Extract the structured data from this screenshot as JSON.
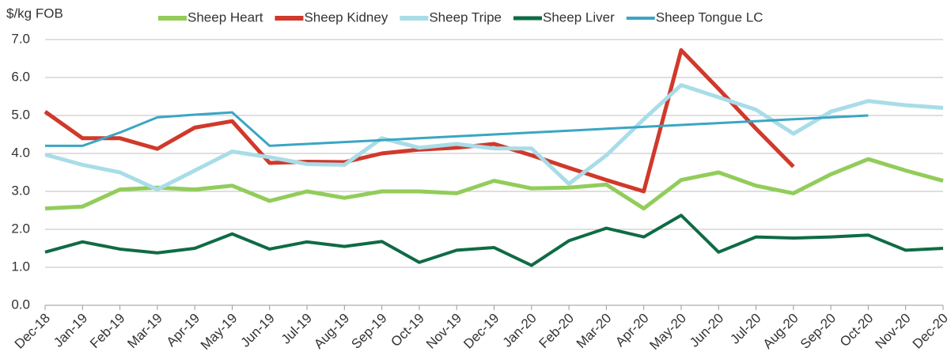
{
  "chart_data": {
    "type": "line",
    "y_axis_label": "$/kg FOB",
    "categories": [
      "Dec-18",
      "Jan-19",
      "Feb-19",
      "Mar-19",
      "Apr-19",
      "May-19",
      "Jun-19",
      "Jul-19",
      "Aug-19",
      "Sep-19",
      "Oct-19",
      "Nov-19",
      "Dec-19",
      "Jan-20",
      "Feb-20",
      "Mar-20",
      "Apr-20",
      "May-20",
      "Jun-20",
      "Jul-20",
      "Aug-20",
      "Sep-20",
      "Oct-20",
      "Nov-20",
      "Dec-20"
    ],
    "series": [
      {
        "name": "Sheep Heart",
        "color": "#92cc5a",
        "width": 5,
        "values": [
          2.55,
          2.6,
          3.05,
          3.1,
          3.05,
          3.15,
          2.75,
          3.0,
          2.83,
          3.0,
          3.0,
          2.95,
          3.28,
          3.08,
          3.1,
          3.18,
          2.55,
          3.3,
          3.5,
          3.15,
          2.95,
          3.45,
          3.85,
          3.55,
          3.28
        ]
      },
      {
        "name": "Sheep Kidney",
        "color": "#d0392b",
        "width": 5,
        "values": [
          5.1,
          4.4,
          4.4,
          4.12,
          4.68,
          4.85,
          3.75,
          3.78,
          3.77,
          4.0,
          4.1,
          4.15,
          4.25,
          3.95,
          3.62,
          3.3,
          3.0,
          6.72,
          5.7,
          4.65,
          3.65,
          null,
          null,
          null,
          null
        ]
      },
      {
        "name": "Sheep Tripe",
        "color": "#a8dde8",
        "width": 5,
        "values": [
          3.97,
          3.7,
          3.5,
          3.05,
          3.55,
          4.05,
          3.9,
          3.72,
          3.7,
          4.4,
          4.15,
          4.25,
          4.13,
          4.13,
          3.2,
          3.95,
          4.9,
          5.8,
          5.48,
          5.15,
          4.52,
          5.1,
          5.38,
          5.27,
          5.2
        ]
      },
      {
        "name": "Sheep Liver",
        "color": "#0f6b45",
        "width": 4,
        "values": [
          1.4,
          1.67,
          1.48,
          1.38,
          1.5,
          1.88,
          1.48,
          1.67,
          1.55,
          1.68,
          1.13,
          1.45,
          1.52,
          1.05,
          1.7,
          2.03,
          1.8,
          2.37,
          1.4,
          1.8,
          1.77,
          1.8,
          1.85,
          1.45,
          1.5
        ]
      },
      {
        "name": "Sheep Tongue LC",
        "color": "#3aa6c4",
        "width": 3,
        "values": [
          4.2,
          4.2,
          4.55,
          4.95,
          5.02,
          5.08,
          4.2,
          4.25,
          4.3,
          4.35,
          4.4,
          4.45,
          4.5,
          4.55,
          4.6,
          4.65,
          4.7,
          4.75,
          4.8,
          4.85,
          4.9,
          4.95,
          5.0,
          null,
          null
        ]
      }
    ],
    "ylim": [
      0,
      7
    ],
    "yticks": [
      {
        "value": 0,
        "label": "0.0"
      },
      {
        "value": 1,
        "label": "1.0"
      },
      {
        "value": 2,
        "label": "2.0"
      },
      {
        "value": 3,
        "label": "3.0"
      },
      {
        "value": 4,
        "label": "4.0"
      },
      {
        "value": 5,
        "label": "5.0"
      },
      {
        "value": 6,
        "label": "6.0"
      },
      {
        "value": 7,
        "label": "7.0"
      }
    ],
    "grid": true,
    "legend": "top"
  }
}
